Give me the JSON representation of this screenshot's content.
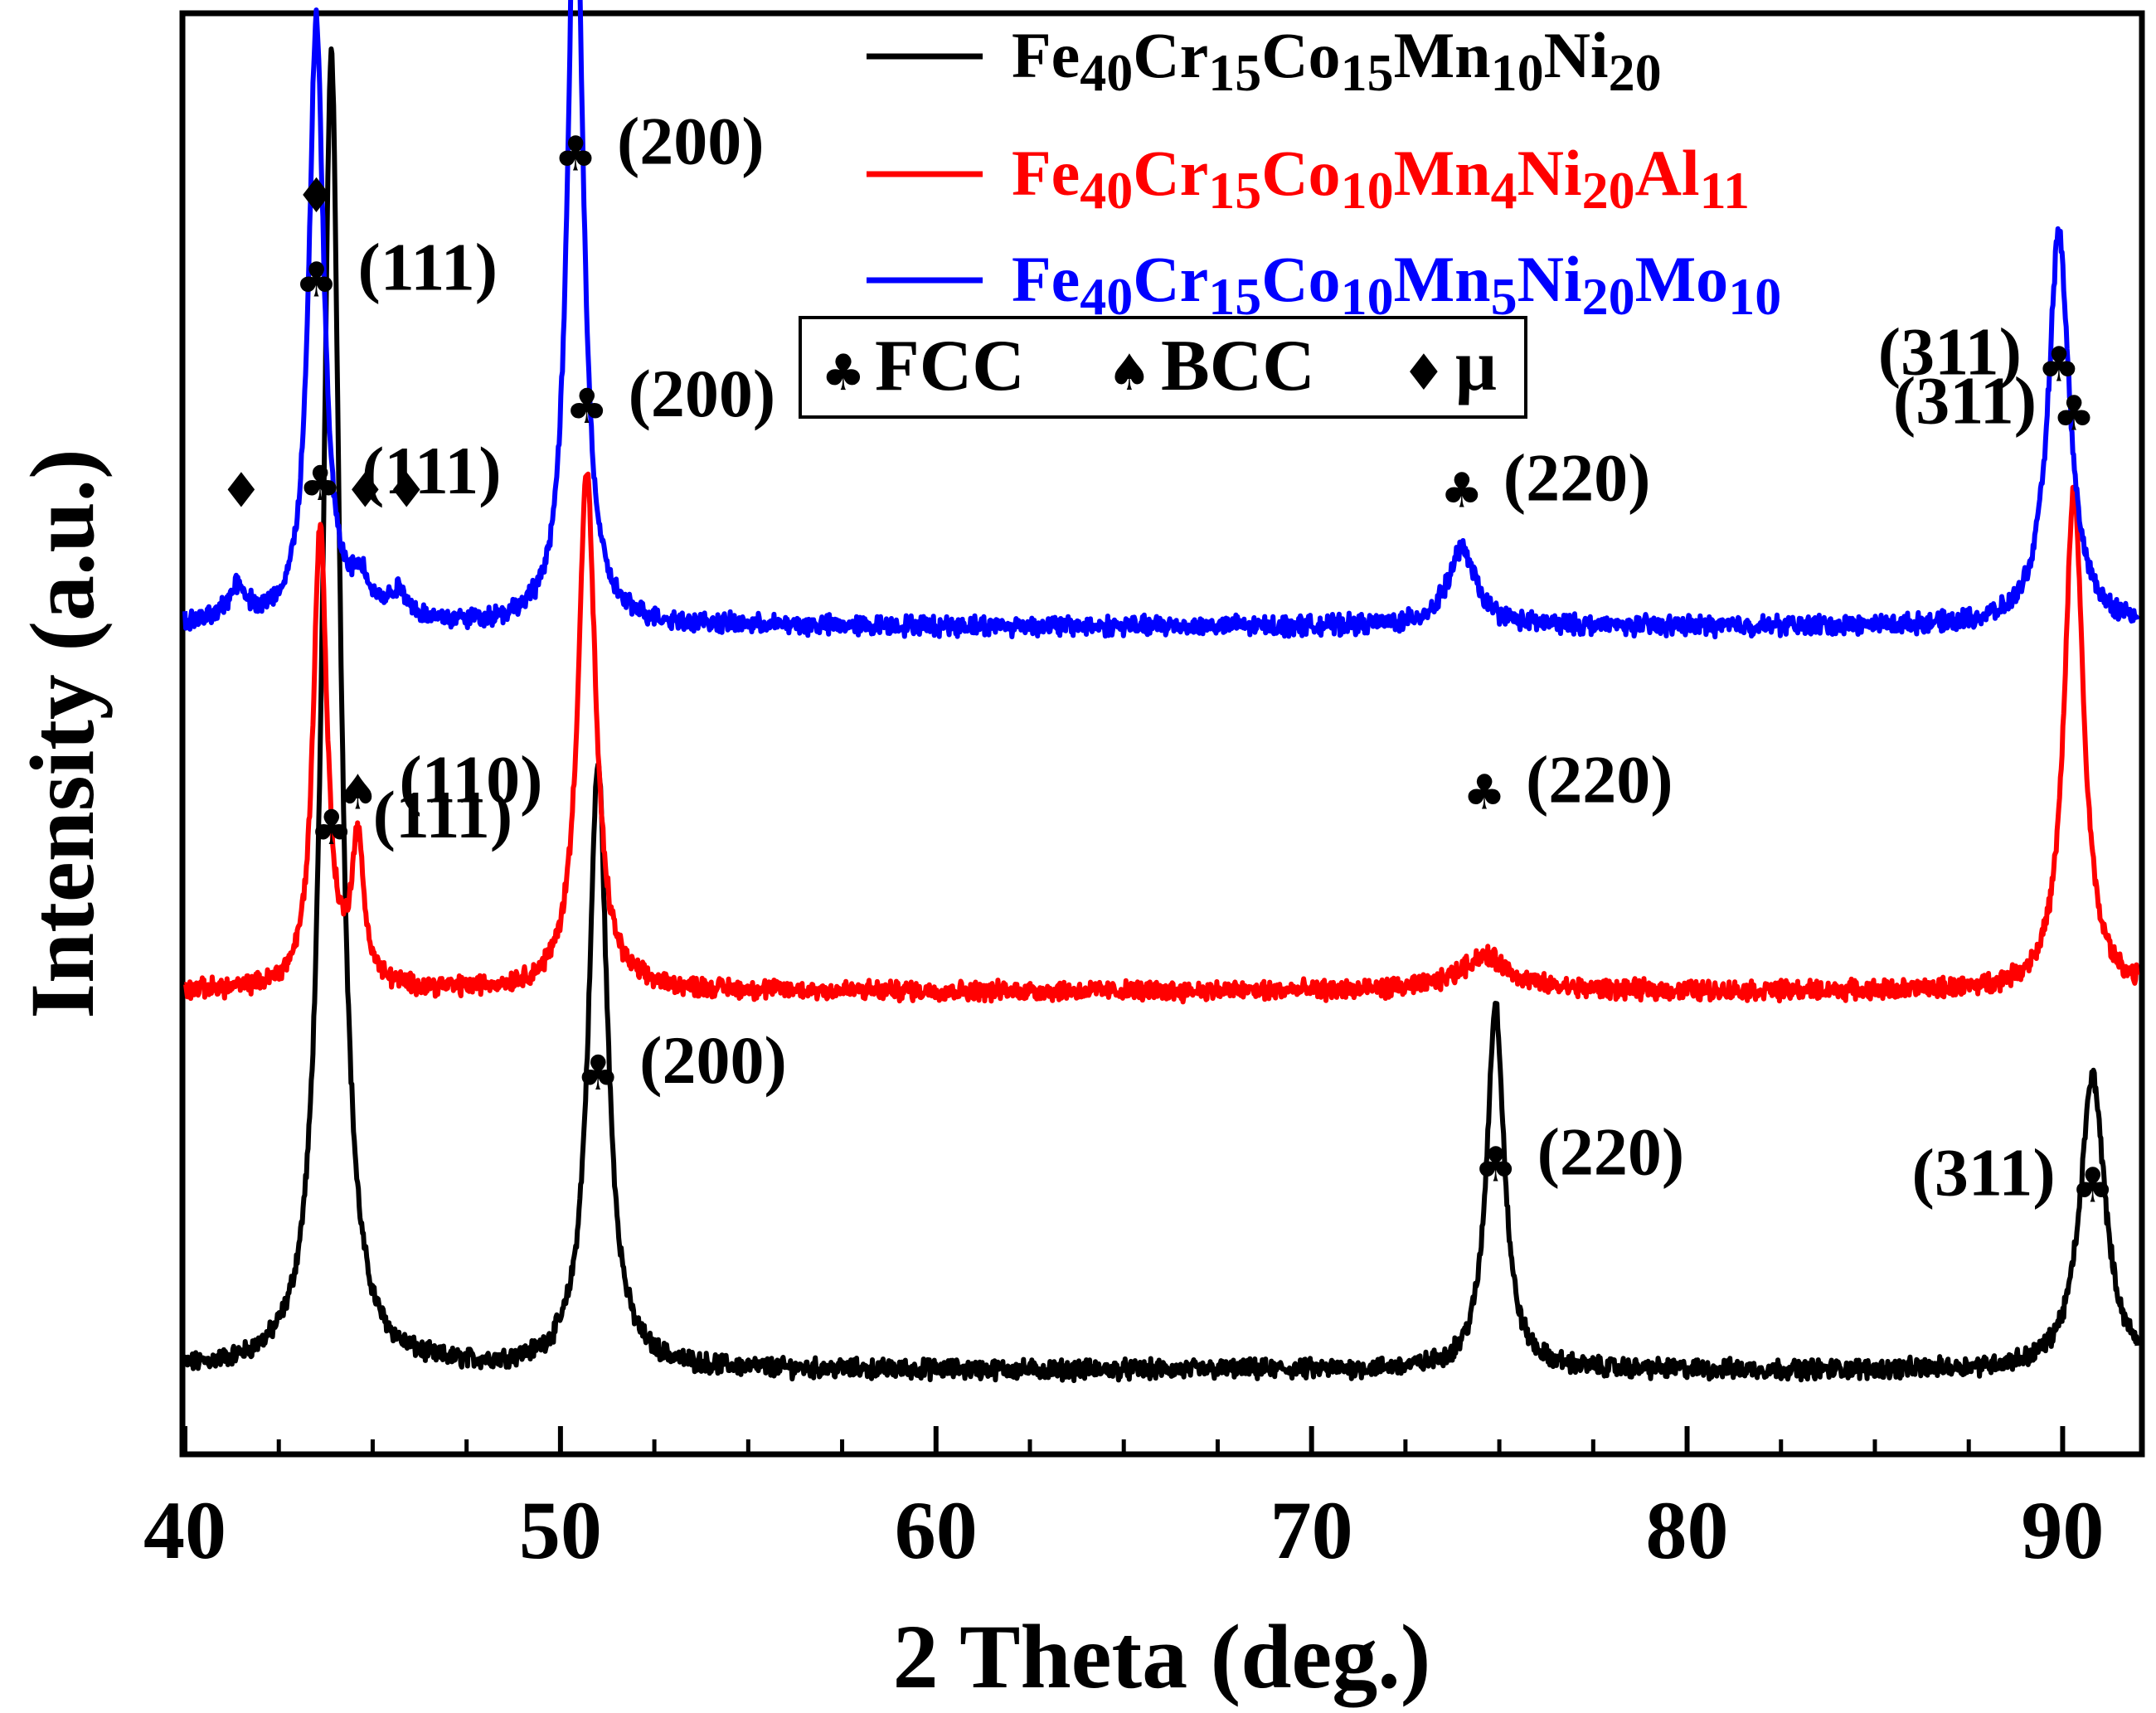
{
  "chart_data": {
    "type": "line",
    "xlabel": "2 Theta (deg.)",
    "ylabel": "Intensity (a.u.)",
    "xlim": [
      40,
      92
    ],
    "ylim": [
      0,
      100
    ],
    "xticks": [
      40,
      50,
      60,
      70,
      80,
      90
    ],
    "minor_step": 2.5,
    "series": [
      {
        "name": "Fe40Cr15Co15Mn10Ni20",
        "legend_parts": [
          [
            "Fe",
            ""
          ],
          [
            "40",
            "sub"
          ],
          [
            "Cr",
            ""
          ],
          [
            "15",
            "sub"
          ],
          [
            "Co",
            ""
          ],
          [
            "15",
            "sub"
          ],
          [
            "Mn",
            ""
          ],
          [
            "10",
            "sub"
          ],
          [
            "Ni",
            ""
          ],
          [
            "20",
            "sub"
          ]
        ],
        "color": "#000000",
        "baseline": 4.5,
        "noise": 0.55,
        "peaks": [
          {
            "x": 43.9,
            "h": 94,
            "w": 0.28
          },
          {
            "x": 51.0,
            "h": 43,
            "w": 0.3
          },
          {
            "x": 74.9,
            "h": 26,
            "w": 0.28
          },
          {
            "x": 90.8,
            "h": 21,
            "w": 0.4
          }
        ]
      },
      {
        "name": "Fe40Cr15Co10Mn4Ni20Al11",
        "legend_parts": [
          [
            "Fe",
            ""
          ],
          [
            "40",
            "sub"
          ],
          [
            "Cr",
            ""
          ],
          [
            "15",
            "sub"
          ],
          [
            "Co",
            ""
          ],
          [
            "10",
            "sub"
          ],
          [
            "Mn",
            ""
          ],
          [
            "4",
            "sub"
          ],
          [
            "Ni",
            ""
          ],
          [
            "20",
            "sub"
          ],
          [
            "Al",
            ""
          ],
          [
            "11",
            "sub"
          ]
        ],
        "color": "#ff0000",
        "baseline": 31.5,
        "noise": 0.55,
        "peaks": [
          {
            "x": 43.6,
            "h": 33,
            "w": 0.22
          },
          {
            "x": 44.6,
            "h": 10,
            "w": 0.2
          },
          {
            "x": 50.7,
            "h": 37,
            "w": 0.28
          },
          {
            "x": 74.6,
            "h": 2.5,
            "w": 0.8
          },
          {
            "x": 90.3,
            "h": 36,
            "w": 0.3
          }
        ]
      },
      {
        "name": "Fe40Cr15Co10Mn5Ni20Mo10",
        "legend_parts": [
          [
            "Fe",
            ""
          ],
          [
            "40",
            "sub"
          ],
          [
            "Cr",
            ""
          ],
          [
            "15",
            "sub"
          ],
          [
            "Co",
            ""
          ],
          [
            "10",
            "sub"
          ],
          [
            "Mn",
            ""
          ],
          [
            "5",
            "sub"
          ],
          [
            "Ni",
            ""
          ],
          [
            "20",
            "sub"
          ],
          [
            "Mo",
            ""
          ],
          [
            "10",
            "sub"
          ]
        ],
        "color": "#0000ff",
        "baseline": 57.5,
        "noise": 0.55,
        "peaks": [
          {
            "x": 41.4,
            "h": 2.5,
            "w": 0.3
          },
          {
            "x": 43.5,
            "h": 43,
            "w": 0.24
          },
          {
            "x": 44.7,
            "h": 2.5,
            "w": 0.3
          },
          {
            "x": 45.7,
            "h": 2.0,
            "w": 0.3
          },
          {
            "x": 50.4,
            "h": 57,
            "w": 0.24
          },
          {
            "x": 74.0,
            "h": 5.5,
            "w": 0.45
          },
          {
            "x": 89.9,
            "h": 28,
            "w": 0.34
          }
        ]
      }
    ],
    "phase_legend": [
      {
        "symbol": "♣",
        "label": "FCC"
      },
      {
        "symbol": "♠",
        "label": "BCC"
      },
      {
        "symbol": "♦",
        "label": "μ"
      }
    ],
    "annotations": [
      {
        "series": 2,
        "x": 43.5,
        "y": 81,
        "symbol": "♣",
        "label": "(111)",
        "side": "right"
      },
      {
        "series": 2,
        "x": 43.5,
        "y": 87,
        "symbol": "♦",
        "label": "",
        "side": "none"
      },
      {
        "series": 2,
        "x": 50.4,
        "y": 90,
        "symbol": "♣",
        "label": "(200)",
        "side": "right"
      },
      {
        "series": 2,
        "x": 41.5,
        "y": 66,
        "symbol": "♦",
        "label": "",
        "side": "none"
      },
      {
        "series": 2,
        "x": 44.8,
        "y": 66,
        "symbol": "♦",
        "label": "",
        "side": "none"
      },
      {
        "series": 2,
        "x": 45.9,
        "y": 66,
        "symbol": "♦",
        "label": "",
        "side": "none"
      },
      {
        "series": 2,
        "x": 74.0,
        "y": 66,
        "symbol": "♣",
        "label": "(220)",
        "side": "right"
      },
      {
        "series": 2,
        "x": 89.9,
        "y": 75,
        "symbol": "♣",
        "label": "(311)",
        "side": "left"
      },
      {
        "series": 1,
        "x": 43.6,
        "y": 66.5,
        "symbol": "♣",
        "label": "(111)",
        "side": "right"
      },
      {
        "series": 1,
        "x": 44.6,
        "y": 44.5,
        "symbol": "♠",
        "label": "(110)",
        "side": "right"
      },
      {
        "series": 1,
        "x": 50.7,
        "y": 72,
        "symbol": "♣",
        "label": "(200)",
        "side": "right"
      },
      {
        "series": 1,
        "x": 74.6,
        "y": 44.5,
        "symbol": "♣",
        "label": "(220)",
        "side": "right"
      },
      {
        "series": 1,
        "x": 90.3,
        "y": 71.5,
        "symbol": "♣",
        "label": "(311)",
        "side": "left"
      },
      {
        "series": 0,
        "x": 43.9,
        "y": 42,
        "symbol": "♣",
        "label": "(111)",
        "side": "right"
      },
      {
        "series": 0,
        "x": 51.0,
        "y": 24.5,
        "symbol": "♣",
        "label": "(200)",
        "side": "right"
      },
      {
        "series": 0,
        "x": 74.9,
        "y": 18,
        "symbol": "♣",
        "label": "(220)",
        "side": "right"
      },
      {
        "series": 0,
        "x": 90.8,
        "y": 16.5,
        "symbol": "♣",
        "label": "(311)",
        "side": "left"
      }
    ]
  }
}
